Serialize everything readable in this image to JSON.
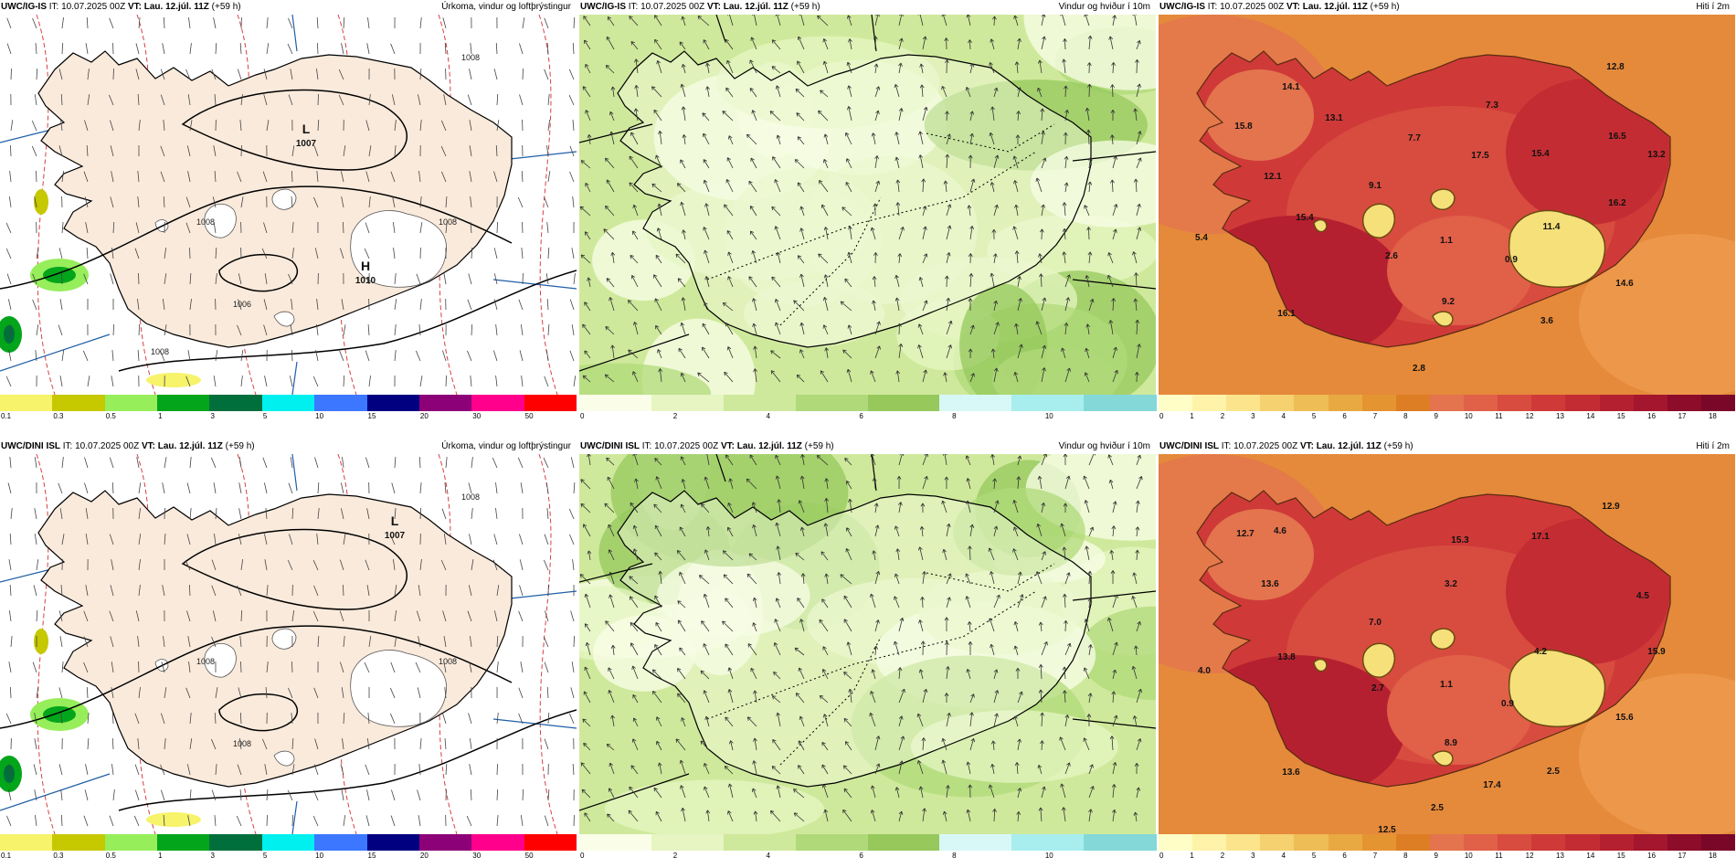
{
  "panels": [
    {
      "id": "igis-precip",
      "model": "UWC/IG-IS",
      "it_label": " IT: 10.07.2025 00Z ",
      "vt_label": "VT: Lau. 12.júl. 11Z",
      "lead": " (+59 h)",
      "title": "Úrkoma, vindur og loftþrýstingur",
      "kind": "precip",
      "lows": [
        {
          "letter": "L",
          "value": "1007"
        }
      ],
      "highs": [
        {
          "letter": "H",
          "value": "1010"
        }
      ],
      "isobar_labels": [
        "1008",
        "1008",
        "1008",
        "1006",
        "1008"
      ],
      "colorbar": {
        "colors": [
          "#f7f36a",
          "#c6c800",
          "#96ee5a",
          "#03a51b",
          "#006f3c",
          "#00f0f0",
          "#3c78ff",
          "#000080",
          "#8c0078",
          "#ff008c",
          "#ff0000"
        ],
        "ticks": [
          "0.1",
          "0.3",
          "0.5",
          "1",
          "3",
          "5",
          "10",
          "15",
          "20",
          "30",
          "50"
        ]
      }
    },
    {
      "id": "igis-wind",
      "model": "UWC/IG-IS",
      "it_label": " IT: 10.07.2025 00Z ",
      "vt_label": "VT: Lau. 12.júl. 11Z",
      "lead": " (+59 h)",
      "title": "Vindur og hviður í 10m",
      "kind": "wind",
      "colorbar": {
        "colors": [
          "#fafde8",
          "#e6f5c2",
          "#cfe99c",
          "#b0d97a",
          "#96c85c",
          "#d8f8f8",
          "#a8eeee",
          "#84d8d8"
        ],
        "ticks": [
          "0",
          "2",
          "4",
          "6",
          "8",
          "10"
        ]
      }
    },
    {
      "id": "igis-temp",
      "model": "UWC/IG-IS",
      "it_label": " IT: 10.07.2025 00Z ",
      "vt_label": "VT: Lau. 12.júl. 11Z",
      "lead": " (+59 h)",
      "title": "Hiti í 2m",
      "kind": "temp",
      "temp_values": [
        "12.8",
        "14.1",
        "13.1",
        "7.3",
        "15.8",
        "7.7",
        "17.5",
        "15.4",
        "16.5",
        "13.2",
        "12.1",
        "9.1",
        "16.2",
        "15.4",
        "11.4",
        "5.4",
        "1.1",
        "2.6",
        "0.9",
        "14.6",
        "9.2",
        "16.1",
        "3.6",
        "2.8"
      ],
      "colorbar": {
        "colors": [
          "#fffec6",
          "#fef3a8",
          "#fbe48c",
          "#f5d170",
          "#efbd56",
          "#e9a942",
          "#e59432",
          "#dd7e24",
          "#e3744e",
          "#e06048",
          "#d84c40",
          "#cf3a38",
          "#c42c33",
          "#b52030",
          "#a3162d",
          "#8c0c2a",
          "#7a0628"
        ],
        "ticks": [
          "0",
          "1",
          "2",
          "3",
          "4",
          "5",
          "6",
          "7",
          "8",
          "9",
          "10",
          "11",
          "12",
          "13",
          "14",
          "15",
          "16",
          "17",
          "18"
        ]
      }
    },
    {
      "id": "dini-precip",
      "model": "UWC/DINI ISL",
      "it_label": " IT: 10.07.2025 00Z ",
      "vt_label": "VT: Lau. 12.júl. 11Z",
      "lead": " (+59 h)",
      "title": "Úrkoma, vindur og loftþrýstingur",
      "kind": "precip",
      "lows": [
        {
          "letter": "L",
          "value": "1007"
        }
      ],
      "highs": [],
      "isobar_labels": [
        "1008",
        "1008",
        "1008",
        "1008"
      ],
      "colorbar": {
        "colors": [
          "#f7f36a",
          "#c6c800",
          "#96ee5a",
          "#03a51b",
          "#006f3c",
          "#00f0f0",
          "#3c78ff",
          "#000080",
          "#8c0078",
          "#ff008c",
          "#ff0000"
        ],
        "ticks": [
          "0.1",
          "0.3",
          "0.5",
          "1",
          "3",
          "5",
          "10",
          "15",
          "20",
          "30",
          "50"
        ]
      }
    },
    {
      "id": "dini-wind",
      "model": "UWC/DINI ISL",
      "it_label": " IT: 10.07.2025 00Z ",
      "vt_label": "VT: Lau. 12.júl. 11Z",
      "lead": " (+59 h)",
      "title": "Vindur og hviður í 10m",
      "kind": "wind",
      "colorbar": {
        "colors": [
          "#fafde8",
          "#e6f5c2",
          "#cfe99c",
          "#b0d97a",
          "#96c85c",
          "#d8f8f8",
          "#a8eeee",
          "#84d8d8"
        ],
        "ticks": [
          "0",
          "2",
          "4",
          "6",
          "8",
          "10"
        ]
      }
    },
    {
      "id": "dini-temp",
      "model": "UWC/DINI ISL",
      "it_label": " IT: 10.07.2025 00Z ",
      "vt_label": "VT: Lau. 12.júl. 11Z",
      "lead": " (+59 h)",
      "title": "Hiti í 2m",
      "kind": "temp",
      "temp_values": [
        "12.9",
        "12.7",
        "4.6",
        "15.3",
        "17.1",
        "13.6",
        "3.2",
        "7.0",
        "4.5",
        "13.8",
        "4.2",
        "15.9",
        "4.0",
        "2.7",
        "1.1",
        "0.9",
        "15.6",
        "8.9",
        "13.6",
        "2.5",
        "17.4",
        "2.5",
        "12.5"
      ],
      "colorbar": {
        "colors": [
          "#fffec6",
          "#fef3a8",
          "#fbe48c",
          "#f5d170",
          "#efbd56",
          "#e9a942",
          "#e59432",
          "#dd7e24",
          "#e3744e",
          "#e06048",
          "#d84c40",
          "#cf3a38",
          "#c42c33",
          "#b52030",
          "#a3162d",
          "#8c0c2a",
          "#7a0628"
        ],
        "ticks": [
          "0",
          "1",
          "2",
          "3",
          "4",
          "5",
          "6",
          "7",
          "8",
          "9",
          "10",
          "11",
          "12",
          "13",
          "14",
          "15",
          "16",
          "17",
          "18"
        ]
      }
    }
  ]
}
